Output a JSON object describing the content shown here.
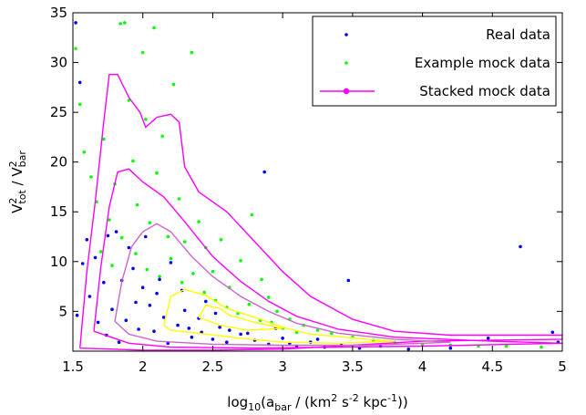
{
  "chart_data": {
    "type": "scatter",
    "title": "",
    "xlabel": {
      "pre": "log",
      "sub1": "10",
      "mid": "(a",
      "sub2": "bar",
      "mid2": " / (km",
      "sup1": "2",
      "mid3": " s",
      "sup2": "-2",
      "mid4": " kpc",
      "sup3": "-1",
      "post": "))"
    },
    "ylabel": {
      "v1": "V",
      "sup1": "2",
      "sub1": "tot",
      "slash": " / V",
      "sup2": "2",
      "sub2": "bar"
    },
    "xlim": [
      1.5,
      5
    ],
    "ylim": [
      1,
      35
    ],
    "xticks": [
      1.5,
      2,
      2.5,
      3,
      3.5,
      4,
      4.5,
      5
    ],
    "xtick_labels": [
      "1.5",
      "2",
      "2.5",
      "3",
      "3.5",
      "4",
      "4.5",
      "5"
    ],
    "yticks": [
      5,
      10,
      15,
      20,
      25,
      30,
      35
    ],
    "ytick_labels": [
      "5",
      "10",
      "15",
      "20",
      "25",
      "30",
      "35"
    ],
    "grid": false,
    "legend_position": "top-right",
    "legend": [
      {
        "label": "Real data",
        "color": "#0000ff",
        "marker": "dot"
      },
      {
        "label": "Example mock data",
        "color": "#00ff00",
        "marker": "dot"
      },
      {
        "label": "Stacked mock data",
        "color": "#ff00ff",
        "marker": "line-dot"
      }
    ],
    "series": [
      {
        "name": "Real data",
        "color": "#0000ff",
        "points": [
          [
            1.52,
            34.0
          ],
          [
            1.55,
            28.0
          ],
          [
            1.6,
            12.2
          ],
          [
            1.57,
            9.8
          ],
          [
            1.53,
            4.6
          ],
          [
            1.62,
            6.5
          ],
          [
            1.66,
            10.4
          ],
          [
            1.72,
            7.9
          ],
          [
            1.75,
            12.6
          ],
          [
            1.78,
            5.2
          ],
          [
            1.81,
            13.0
          ],
          [
            1.85,
            8.1
          ],
          [
            1.88,
            4.1
          ],
          [
            1.9,
            11.4
          ],
          [
            1.93,
            9.3
          ],
          [
            1.97,
            3.2
          ],
          [
            2.0,
            7.4
          ],
          [
            2.02,
            12.5
          ],
          [
            2.05,
            5.6
          ],
          [
            2.08,
            3.0
          ],
          [
            2.1,
            6.8
          ],
          [
            2.15,
            4.4
          ],
          [
            2.2,
            9.9
          ],
          [
            2.25,
            3.6
          ],
          [
            2.3,
            5.1
          ],
          [
            2.35,
            2.4
          ],
          [
            2.4,
            4.3
          ],
          [
            2.45,
            6.0
          ],
          [
            2.5,
            2.2
          ],
          [
            2.55,
            3.4
          ],
          [
            2.6,
            1.9
          ],
          [
            2.7,
            2.7
          ],
          [
            2.8,
            2.1
          ],
          [
            2.87,
            19.0
          ],
          [
            2.9,
            1.7
          ],
          [
            3.0,
            2.3
          ],
          [
            3.1,
            1.5
          ],
          [
            3.2,
            1.9
          ],
          [
            3.3,
            1.4
          ],
          [
            3.42,
            1.6
          ],
          [
            3.47,
            8.1
          ],
          [
            3.55,
            1.3
          ],
          [
            3.7,
            1.5
          ],
          [
            3.9,
            1.2
          ],
          [
            4.2,
            1.3
          ],
          [
            4.47,
            2.3
          ],
          [
            4.7,
            11.5
          ],
          [
            4.93,
            2.9
          ],
          [
            4.97,
            1.9
          ],
          [
            1.68,
            3.9
          ],
          [
            1.74,
            2.6
          ],
          [
            1.83,
            1.9
          ],
          [
            1.95,
            5.9
          ],
          [
            2.12,
            8.2
          ],
          [
            2.18,
            1.8
          ],
          [
            2.28,
            7.1
          ],
          [
            2.33,
            3.3
          ],
          [
            2.42,
            2.9
          ],
          [
            2.52,
            4.8
          ],
          [
            2.62,
            3.1
          ],
          [
            2.75,
            2.8
          ],
          [
            2.95,
            3.3
          ],
          [
            3.05,
            1.8
          ],
          [
            3.25,
            2.2
          ]
        ]
      },
      {
        "name": "Example mock data",
        "color": "#00ff00",
        "points": [
          [
            1.52,
            31.4
          ],
          [
            1.55,
            25.8
          ],
          [
            1.58,
            21.0
          ],
          [
            1.63,
            18.5
          ],
          [
            1.67,
            16.0
          ],
          [
            1.72,
            22.3
          ],
          [
            1.76,
            14.2
          ],
          [
            1.8,
            17.8
          ],
          [
            1.84,
            33.9
          ],
          [
            1.87,
            34.0
          ],
          [
            1.9,
            26.2
          ],
          [
            1.93,
            20.1
          ],
          [
            1.96,
            15.7
          ],
          [
            2.0,
            31.0
          ],
          [
            2.02,
            24.3
          ],
          [
            2.05,
            13.9
          ],
          [
            2.08,
            33.5
          ],
          [
            2.1,
            18.9
          ],
          [
            2.14,
            22.6
          ],
          [
            2.18,
            12.5
          ],
          [
            2.22,
            27.8
          ],
          [
            2.26,
            16.3
          ],
          [
            2.3,
            12.0
          ],
          [
            2.35,
            31.0
          ],
          [
            2.4,
            14.0
          ],
          [
            2.45,
            11.4
          ],
          [
            2.5,
            9.0
          ],
          [
            2.56,
            12.2
          ],
          [
            2.62,
            7.4
          ],
          [
            2.7,
            10.1
          ],
          [
            2.78,
            14.7
          ],
          [
            2.85,
            8.2
          ],
          [
            2.9,
            6.4
          ],
          [
            2.96,
            5.0
          ],
          [
            3.05,
            4.2
          ],
          [
            3.15,
            3.6
          ],
          [
            3.25,
            3.1
          ],
          [
            3.35,
            2.8
          ],
          [
            3.5,
            2.4
          ],
          [
            3.65,
            2.1
          ],
          [
            3.8,
            1.9
          ],
          [
            4.0,
            1.7
          ],
          [
            4.2,
            1.6
          ],
          [
            4.4,
            1.5
          ],
          [
            4.6,
            1.5
          ],
          [
            4.85,
            1.4
          ],
          [
            1.7,
            11.0
          ],
          [
            1.78,
            9.6
          ],
          [
            1.85,
            12.4
          ],
          [
            1.95,
            10.8
          ],
          [
            2.03,
            9.2
          ],
          [
            2.12,
            8.5
          ],
          [
            2.2,
            10.3
          ],
          [
            2.28,
            7.9
          ],
          [
            2.36,
            8.8
          ],
          [
            2.44,
            6.9
          ],
          [
            2.52,
            6.1
          ],
          [
            2.6,
            5.4
          ],
          [
            2.68,
            4.8
          ],
          [
            2.76,
            5.7
          ],
          [
            2.84,
            4.1
          ],
          [
            2.92,
            3.9
          ],
          [
            3.0,
            3.3
          ],
          [
            3.1,
            2.9
          ]
        ]
      }
    ],
    "contours": [
      {
        "name": "Stacked mock data",
        "color": "#ff00ff",
        "level": "outer",
        "path": [
          [
            1.55,
            1.3
          ],
          [
            1.6,
            9.0
          ],
          [
            1.66,
            16.0
          ],
          [
            1.72,
            24.0
          ],
          [
            1.76,
            28.8
          ],
          [
            1.82,
            28.8
          ],
          [
            1.9,
            26.5
          ],
          [
            1.98,
            25.0
          ],
          [
            2.02,
            23.5
          ],
          [
            2.1,
            24.5
          ],
          [
            2.2,
            24.8
          ],
          [
            2.26,
            24.0
          ],
          [
            2.3,
            19.5
          ],
          [
            2.4,
            17.0
          ],
          [
            2.6,
            15.0
          ],
          [
            2.8,
            12.0
          ],
          [
            3.0,
            9.0
          ],
          [
            3.2,
            6.5
          ],
          [
            3.5,
            4.2
          ],
          [
            3.8,
            3.0
          ],
          [
            4.2,
            2.6
          ],
          [
            5.0,
            2.6
          ],
          [
            5.0,
            2.2
          ],
          [
            4.0,
            2.0
          ],
          [
            3.5,
            1.6
          ],
          [
            3.0,
            1.2
          ],
          [
            2.5,
            1.1
          ],
          [
            2.0,
            1.1
          ],
          [
            1.55,
            1.3
          ]
        ]
      },
      {
        "name": "",
        "color": "#ff00ff",
        "level": "middle",
        "path": [
          [
            1.65,
            3.0
          ],
          [
            1.7,
            9.5
          ],
          [
            1.76,
            15.5
          ],
          [
            1.82,
            19.0
          ],
          [
            1.9,
            19.3
          ],
          [
            2.0,
            18.0
          ],
          [
            2.15,
            16.5
          ],
          [
            2.3,
            14.0
          ],
          [
            2.5,
            10.5
          ],
          [
            2.7,
            8.0
          ],
          [
            2.9,
            6.0
          ],
          [
            3.1,
            4.5
          ],
          [
            3.4,
            3.2
          ],
          [
            3.8,
            2.4
          ],
          [
            4.5,
            2.0
          ],
          [
            5.0,
            1.8
          ],
          [
            4.0,
            1.5
          ],
          [
            3.4,
            1.4
          ],
          [
            2.8,
            1.3
          ],
          [
            2.2,
            1.4
          ],
          [
            1.9,
            1.8
          ],
          [
            1.65,
            3.0
          ]
        ]
      },
      {
        "name": "",
        "color": "#cc66cc",
        "level": "inner",
        "path": [
          [
            1.8,
            4.0
          ],
          [
            1.85,
            8.0
          ],
          [
            1.92,
            11.5
          ],
          [
            2.0,
            13.0
          ],
          [
            2.1,
            13.8
          ],
          [
            2.2,
            13.0
          ],
          [
            2.35,
            10.5
          ],
          [
            2.5,
            8.5
          ],
          [
            2.7,
            6.5
          ],
          [
            2.9,
            5.0
          ],
          [
            3.1,
            3.8
          ],
          [
            3.4,
            2.8
          ],
          [
            3.8,
            2.2
          ],
          [
            4.2,
            1.9
          ],
          [
            3.6,
            1.6
          ],
          [
            3.0,
            1.6
          ],
          [
            2.5,
            1.7
          ],
          [
            2.1,
            2.0
          ],
          [
            1.9,
            2.7
          ],
          [
            1.8,
            4.0
          ]
        ]
      },
      {
        "name": "",
        "color": "#ffff00",
        "level": "core",
        "path": [
          [
            2.15,
            3.6
          ],
          [
            2.2,
            6.5
          ],
          [
            2.3,
            7.2
          ],
          [
            2.45,
            6.6
          ],
          [
            2.6,
            5.3
          ],
          [
            2.8,
            4.4
          ],
          [
            3.0,
            3.4
          ],
          [
            3.2,
            2.7
          ],
          [
            3.6,
            2.2
          ],
          [
            3.8,
            2.0
          ],
          [
            3.4,
            1.8
          ],
          [
            3.0,
            1.9
          ],
          [
            2.7,
            2.3
          ],
          [
            2.4,
            2.8
          ],
          [
            2.2,
            3.1
          ],
          [
            2.15,
            3.6
          ]
        ]
      },
      {
        "name": "",
        "color": "#ffff00",
        "level": "core-small",
        "path": [
          [
            2.4,
            4.4
          ],
          [
            2.45,
            5.6
          ],
          [
            2.55,
            5.3
          ],
          [
            2.62,
            4.6
          ],
          [
            2.8,
            3.9
          ],
          [
            3.0,
            3.3
          ],
          [
            2.75,
            3.1
          ],
          [
            2.55,
            3.6
          ],
          [
            2.4,
            4.4
          ]
        ]
      }
    ]
  }
}
